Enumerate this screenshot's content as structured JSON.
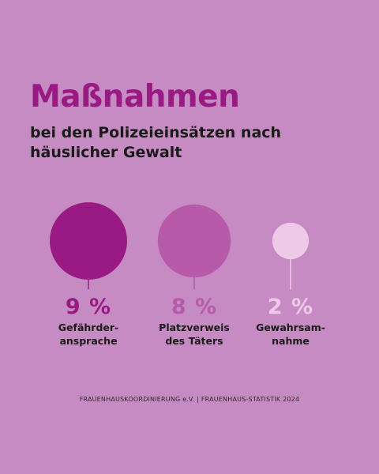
{
  "title": "Maßnahmen",
  "subtitle": "bei den Polizeieinsätzen nach häuslicher Gewalt",
  "chart_data": {
    "type": "bubble",
    "categories": [
      "Gefährder-\nansprache",
      "Platzverweis\ndes Täters",
      "Gewahrsam-\nnahme"
    ],
    "values": [
      9,
      8,
      2
    ],
    "value_labels": [
      "9 %",
      "8 %",
      "2 %"
    ],
    "colors": [
      "#9a1a84",
      "#b75aa9",
      "#efc9e8"
    ]
  },
  "footer": {
    "org": "FRAUENHAUSKOORDINIERUNG e.V.",
    "separator": "|",
    "source": "FRAUENHAUS-STATISTIK 2024"
  }
}
